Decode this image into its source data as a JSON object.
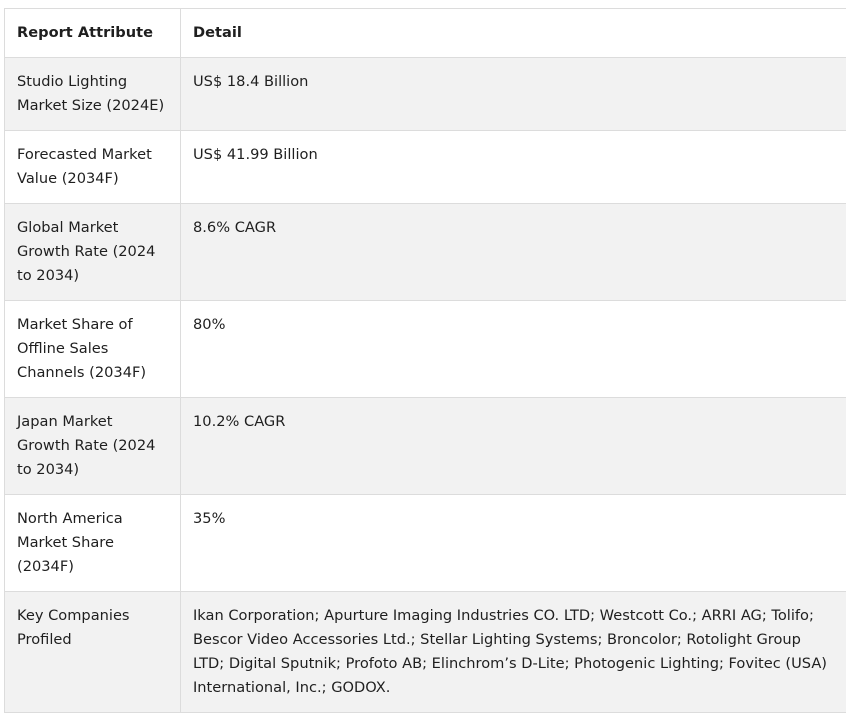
{
  "table": {
    "headers": [
      "Report Attribute",
      "Detail"
    ],
    "rows": [
      {
        "attribute": "Studio Lighting Market Size (2024E)",
        "detail": "US$ 18.4 Billion"
      },
      {
        "attribute": "Forecasted Market Value (2034F)",
        "detail": "US$ 41.99 Billion"
      },
      {
        "attribute": "Global Market Growth Rate (2024 to 2034)",
        "detail": "8.6% CAGR"
      },
      {
        "attribute": "Market Share of Offline Sales Channels (2034F)",
        "detail": "80%"
      },
      {
        "attribute": "Japan Market Growth Rate (2024 to 2034)",
        "detail": "10.2% CAGR"
      },
      {
        "attribute": "North America Market Share (2034F)",
        "detail": "35%"
      },
      {
        "attribute": "Key Companies Profiled",
        "detail": "Ikan Corporation; Apurture Imaging Industries CO. LTD; Westcott Co.; ARRI AG; Tolifo; Bescor Video Accessories Ltd.; Stellar Lighting Systems; Broncolor; Rotolight Group LTD; Digital Sputnik; Profoto AB; Elinchrom’s D-Lite; Photogenic Lighting; Fovitec (USA) International, Inc.; GODOX."
      }
    ]
  }
}
